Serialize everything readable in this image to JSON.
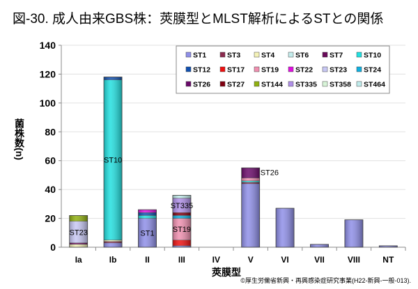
{
  "chart_data": {
    "type": "bar",
    "stacked": true,
    "title": "図-30. 成人由来GBS株：莢膜型とMLST解析によるSTとの関係",
    "xlabel": "莢膜型",
    "ylabel": "菌株数(n)",
    "ylim": [
      0,
      140
    ],
    "yticks": [
      0,
      20,
      40,
      60,
      80,
      100,
      120,
      140
    ],
    "grid": true,
    "legend_position": "top-right",
    "categories": [
      "Ia",
      "Ib",
      "II",
      "III",
      "IV",
      "V",
      "VI",
      "VII",
      "VIII",
      "NT"
    ],
    "series": [
      {
        "name": "ST1",
        "color": "#8f8fe8",
        "values": [
          0,
          3,
          20,
          1,
          0,
          44,
          27,
          2,
          19,
          1
        ]
      },
      {
        "name": "ST3",
        "color": "#8b2a4e",
        "values": [
          0,
          1,
          0,
          0,
          0,
          1,
          0,
          0,
          0,
          0
        ]
      },
      {
        "name": "ST4",
        "color": "#f4f2b8",
        "values": [
          2,
          1,
          0,
          0,
          0,
          0,
          0,
          0,
          0,
          0
        ]
      },
      {
        "name": "ST6",
        "color": "#c4ecec",
        "values": [
          0,
          0,
          0,
          0,
          0,
          0,
          0,
          0,
          0,
          0
        ]
      },
      {
        "name": "ST7",
        "color": "#6a0a5a",
        "values": [
          1,
          0,
          0,
          0,
          0,
          0,
          0,
          0,
          0,
          0
        ]
      },
      {
        "name": "ST10",
        "color": "#22e0e0",
        "values": [
          0,
          111,
          2,
          0,
          0,
          1,
          0,
          0,
          0,
          0
        ]
      },
      {
        "name": "ST12",
        "color": "#1050b0",
        "values": [
          0,
          2,
          2,
          0,
          0,
          0,
          0,
          0,
          0,
          0
        ]
      },
      {
        "name": "ST17",
        "color": "#ee1010",
        "values": [
          0,
          0,
          0,
          4,
          0,
          0,
          0,
          0,
          0,
          0
        ]
      },
      {
        "name": "ST19",
        "color": "#f090b0",
        "values": [
          0,
          0,
          0,
          15,
          0,
          2,
          0,
          0,
          0,
          0
        ]
      },
      {
        "name": "ST22",
        "color": "#e010e0",
        "values": [
          0,
          0,
          2,
          0,
          0,
          0,
          0,
          0,
          0,
          0
        ]
      },
      {
        "name": "ST23",
        "color": "#c8c8f4",
        "values": [
          15,
          0,
          0,
          0,
          0,
          0,
          0,
          0,
          0,
          0
        ]
      },
      {
        "name": "ST24",
        "color": "#10b0e0",
        "values": [
          0,
          0,
          0,
          2,
          0,
          0,
          0,
          0,
          0,
          0
        ]
      },
      {
        "name": "ST26",
        "color": "#6a0a6a",
        "values": [
          0,
          0,
          0,
          0,
          0,
          7,
          0,
          0,
          0,
          0
        ]
      },
      {
        "name": "ST27",
        "color": "#800010",
        "values": [
          0,
          0,
          0,
          2,
          0,
          0,
          0,
          0,
          0,
          0
        ]
      },
      {
        "name": "ST144",
        "color": "#90b010",
        "values": [
          4,
          0,
          0,
          0,
          0,
          0,
          0,
          0,
          0,
          0
        ]
      },
      {
        "name": "ST335",
        "color": "#b090e8",
        "values": [
          0,
          0,
          0,
          10,
          0,
          0,
          0,
          0,
          0,
          0
        ]
      },
      {
        "name": "ST358",
        "color": "#d8f4d8",
        "values": [
          0,
          0,
          0,
          0,
          0,
          0,
          0,
          0,
          0,
          0
        ]
      },
      {
        "name": "ST464",
        "color": "#c0ecec",
        "values": [
          0,
          0,
          0,
          2,
          0,
          0,
          0,
          0,
          0,
          0
        ]
      }
    ],
    "annotations": [
      {
        "category": "Ia",
        "text": "ST23"
      },
      {
        "category": "Ib",
        "text": "ST10"
      },
      {
        "category": "II",
        "text": "ST1"
      },
      {
        "category": "III",
        "text": "ST19"
      },
      {
        "category": "III",
        "text": "ST335"
      },
      {
        "category": "V",
        "text": "ST26"
      }
    ]
  },
  "footnote": "©厚生労働省新興・再興感染症研究事業(H22-新興-一般-013)."
}
